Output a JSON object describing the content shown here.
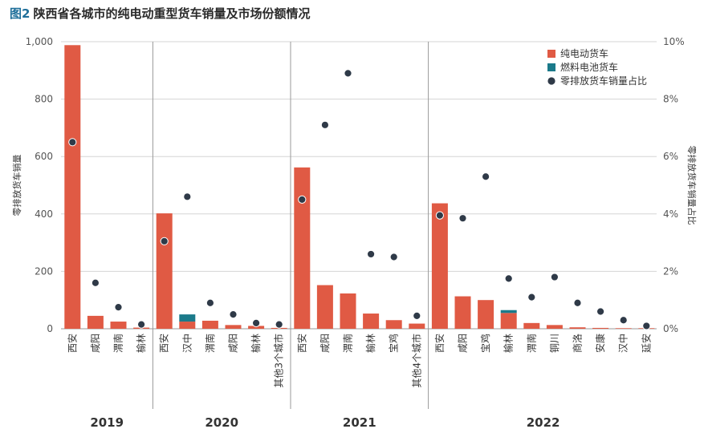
{
  "figure": {
    "number": "图2",
    "title": "陕西省各城市的纯电动重型货车销量及市场份额情况"
  },
  "colors": {
    "bev": "#e05a44",
    "fcev": "#1b7a8a",
    "share": "#2f3a48",
    "grid": "#d5d5d5",
    "axis": "#555555"
  },
  "chart_data": {
    "type": "bar",
    "stacked": true,
    "ylabel": "零排放货车销量",
    "y2label": "零排放货车销量占比",
    "ylim": [
      0,
      1000
    ],
    "y2lim": [
      0,
      10
    ],
    "yticks": [
      "0",
      "200",
      "400",
      "600",
      "800",
      "1,000"
    ],
    "y2ticks": [
      "0%",
      "2%",
      "4%",
      "6%",
      "8%",
      "10%"
    ],
    "legend": {
      "position": "top-right",
      "items": [
        "纯电动货车",
        "燃料电池货车",
        "零排放货车销量占比"
      ]
    },
    "groups": [
      {
        "year": "2019",
        "categories": [
          "西安",
          "咸阳",
          "渭南",
          "榆林"
        ],
        "bev": [
          988,
          45,
          25,
          4
        ],
        "fcev": [
          0,
          0,
          0,
          0
        ],
        "share": [
          6.5,
          1.6,
          0.75,
          0.15
        ]
      },
      {
        "year": "2020",
        "categories": [
          "西安",
          "汉中",
          "渭南",
          "咸阳",
          "榆林",
          "其他3个城市"
        ],
        "bev": [
          402,
          25,
          28,
          13,
          10,
          3
        ],
        "fcev": [
          0,
          25,
          0,
          0,
          0,
          0
        ],
        "share": [
          3.05,
          4.6,
          0.9,
          0.5,
          0.2,
          0.15
        ]
      },
      {
        "year": "2021",
        "categories": [
          "西安",
          "咸阳",
          "渭南",
          "榆林",
          "宝鸡",
          "其他4个城市"
        ],
        "bev": [
          562,
          152,
          123,
          53,
          30,
          18
        ],
        "fcev": [
          0,
          0,
          0,
          0,
          0,
          0
        ],
        "share": [
          4.5,
          7.1,
          8.9,
          2.6,
          2.5,
          0.45
        ]
      },
      {
        "year": "2022",
        "categories": [
          "西安",
          "咸阳",
          "宝鸡",
          "榆林",
          "渭南",
          "铜川",
          "商洛",
          "安康",
          "汉中",
          "延安"
        ],
        "bev": [
          437,
          113,
          100,
          55,
          20,
          13,
          5,
          3,
          2,
          2
        ],
        "fcev": [
          0,
          0,
          0,
          10,
          0,
          0,
          0,
          0,
          0,
          0
        ],
        "share": [
          3.95,
          3.85,
          5.3,
          1.75,
          1.1,
          1.8,
          0.9,
          0.6,
          0.3,
          0.1
        ]
      }
    ]
  }
}
